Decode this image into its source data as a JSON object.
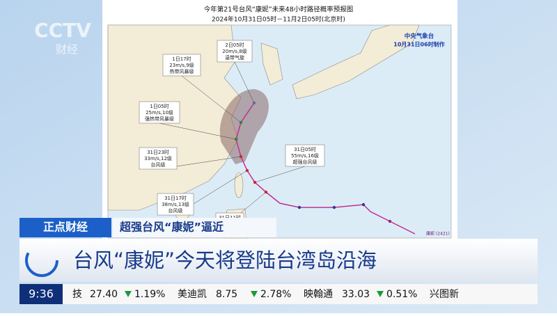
{
  "logo": {
    "brand": "CCTV",
    "channel": "财经"
  },
  "map": {
    "title": "今年第21号台风“康妮”未来48小时路径概率预报图",
    "subtitle": "2024年10月31日05时－11月2日05时(北京时)",
    "agency": "中央气象台",
    "issued": "10月31日06时制作",
    "labels": [
      [
        "2日05时",
        "20m/s,8级",
        "温带气旋"
      ],
      [
        "1日17时",
        "23m/s,9级",
        "热带风暴级"
      ],
      [
        "1日05时",
        "25m/s,10级",
        "强热带风暴级"
      ],
      [
        "31日23时",
        "33m/s,12级",
        "台风级"
      ],
      [
        "31日17时",
        "38m/s,13级",
        "台风级"
      ],
      [
        "31日05时",
        "55m/s,16级",
        "超强台风级"
      ],
      [
        "31日11时"
      ]
    ],
    "storm": "康妮 (2421)"
  },
  "lower_third": {
    "program": "正点财经",
    "topic": "超强台风“康妮”逼近",
    "headline": "台风“康妮”今天将登陆台湾岛沿海"
  },
  "ticker": {
    "time": "9:36",
    "items": [
      {
        "name": "技",
        "price": "27.40",
        "change": "1.19%"
      },
      {
        "name": "美迪凯",
        "price": "8.75",
        "change": "2.78%"
      },
      {
        "name": "映翰通",
        "price": "33.03",
        "change": "0.51%"
      },
      {
        "name": "兴图新"
      }
    ]
  }
}
